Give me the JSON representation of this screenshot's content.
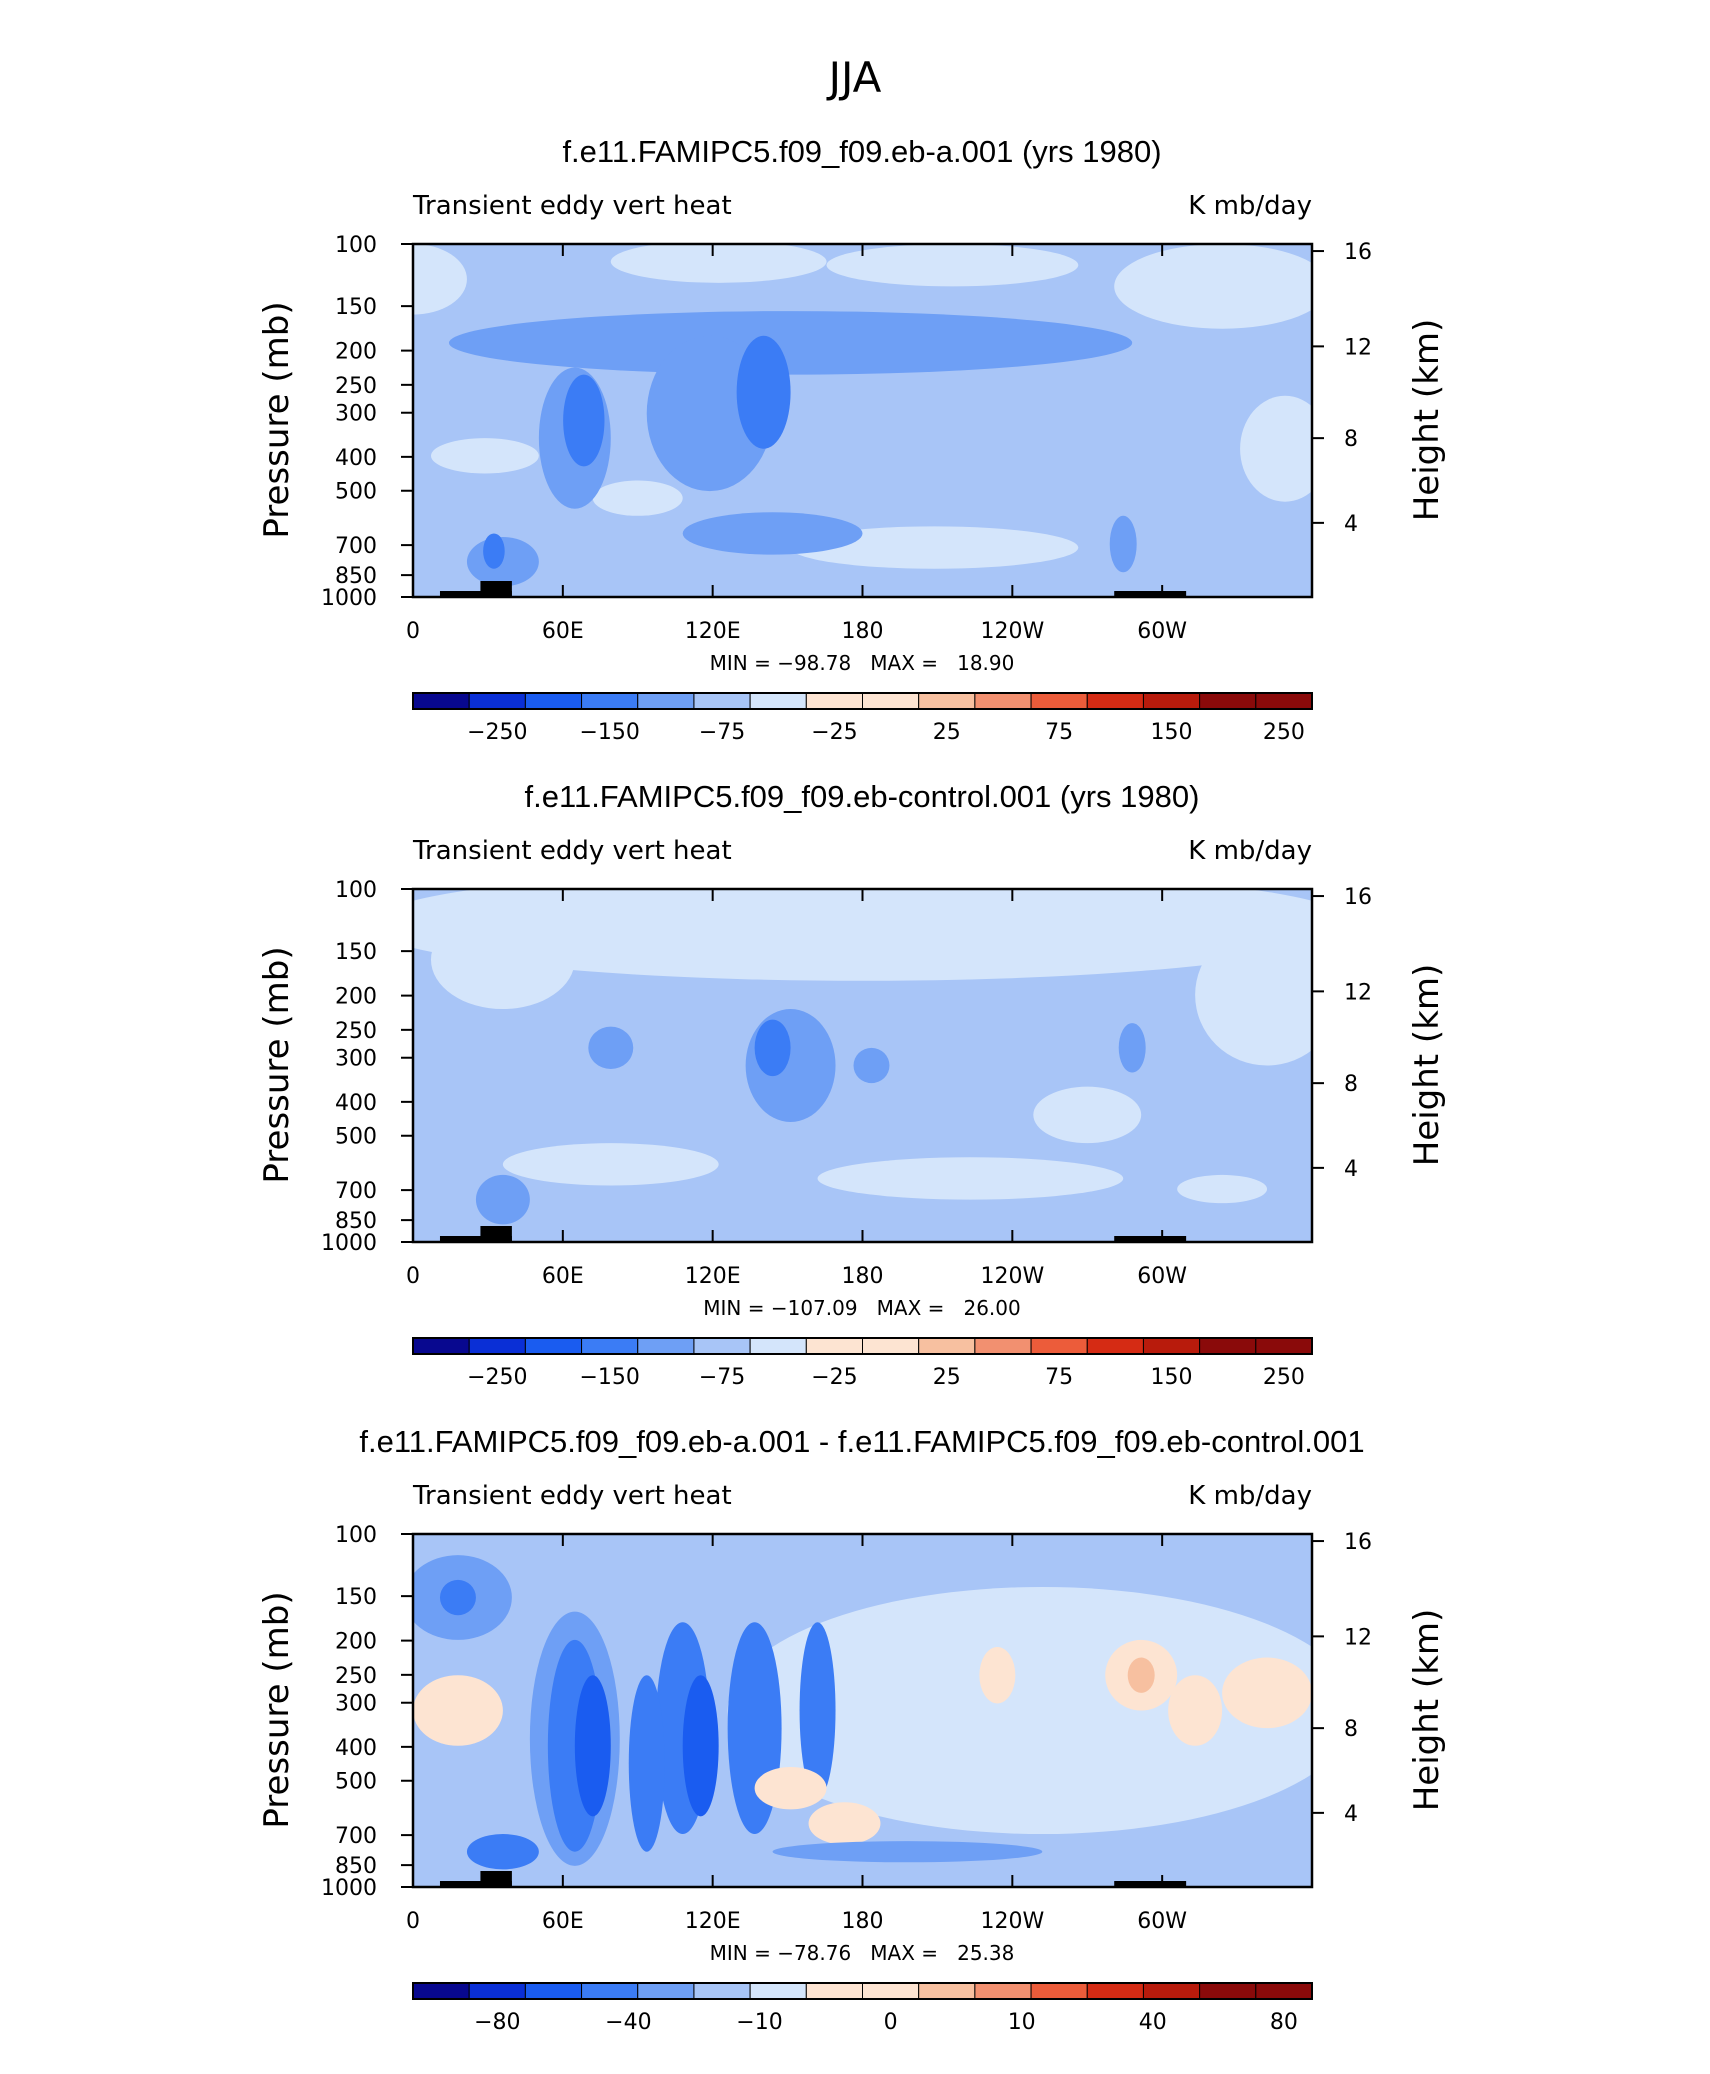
{
  "main_title": "JJA",
  "chart_data": [
    {
      "type": "heatmap",
      "title": "f.e11.FAMIPC5.f09_f09.eb-a.001 (yrs 1980)",
      "left_label": "Transient eddy vert heat",
      "right_label": "K mb/day",
      "ylabel": "Pressure (mb)",
      "y2label": "Height (km)",
      "x_ticks": [
        "0",
        "60E",
        "120E",
        "180",
        "120W",
        "60W"
      ],
      "y_ticks": [
        "100",
        "150",
        "200",
        "250",
        "300",
        "400",
        "500",
        "700",
        "850",
        "1000"
      ],
      "y2_ticks": [
        "16",
        "12",
        "8",
        "4"
      ],
      "stats": "MIN = −98.78   MAX =   18.90",
      "colorbar_labels": [
        "−250",
        "−150",
        "−75",
        "−25",
        "25",
        "75",
        "150",
        "250"
      ],
      "field": {
        "background": 5,
        "blobs": [
          {
            "cx": 0.0,
            "cy": 0.1,
            "rx": 0.06,
            "ry": 0.1,
            "level": 6
          },
          {
            "cx": 0.9,
            "cy": 0.12,
            "rx": 0.12,
            "ry": 0.12,
            "level": 6
          },
          {
            "cx": 0.34,
            "cy": 0.05,
            "rx": 0.12,
            "ry": 0.06,
            "level": 6
          },
          {
            "cx": 0.6,
            "cy": 0.06,
            "rx": 0.14,
            "ry": 0.06,
            "level": 6
          },
          {
            "cx": 0.58,
            "cy": 0.86,
            "rx": 0.16,
            "ry": 0.06,
            "level": 6
          },
          {
            "cx": 0.25,
            "cy": 0.72,
            "rx": 0.05,
            "ry": 0.05,
            "level": 6
          },
          {
            "cx": 0.97,
            "cy": 0.58,
            "rx": 0.05,
            "ry": 0.15,
            "level": 6
          },
          {
            "cx": 0.08,
            "cy": 0.6,
            "rx": 0.06,
            "ry": 0.05,
            "level": 6
          },
          {
            "cx": 0.42,
            "cy": 0.28,
            "rx": 0.38,
            "ry": 0.09,
            "level": 4
          },
          {
            "cx": 0.18,
            "cy": 0.55,
            "rx": 0.04,
            "ry": 0.2,
            "level": 4
          },
          {
            "cx": 0.19,
            "cy": 0.5,
            "rx": 0.023,
            "ry": 0.13,
            "level": 3
          },
          {
            "cx": 0.33,
            "cy": 0.48,
            "rx": 0.07,
            "ry": 0.22,
            "level": 4
          },
          {
            "cx": 0.39,
            "cy": 0.42,
            "rx": 0.03,
            "ry": 0.16,
            "level": 3
          },
          {
            "cx": 0.4,
            "cy": 0.82,
            "rx": 0.1,
            "ry": 0.06,
            "level": 4
          },
          {
            "cx": 0.1,
            "cy": 0.9,
            "rx": 0.04,
            "ry": 0.07,
            "level": 4
          },
          {
            "cx": 0.09,
            "cy": 0.87,
            "rx": 0.012,
            "ry": 0.05,
            "level": 3
          },
          {
            "cx": 0.79,
            "cy": 0.85,
            "rx": 0.015,
            "ry": 0.08,
            "level": 4
          }
        ]
      }
    },
    {
      "type": "heatmap",
      "title": "f.e11.FAMIPC5.f09_f09.eb-control.001 (yrs 1980)",
      "left_label": "Transient eddy vert heat",
      "right_label": "K mb/day",
      "ylabel": "Pressure (mb)",
      "y2label": "Height (km)",
      "x_ticks": [
        "0",
        "60E",
        "120E",
        "180",
        "120W",
        "60W"
      ],
      "y_ticks": [
        "100",
        "150",
        "200",
        "250",
        "300",
        "400",
        "500",
        "700",
        "850",
        "1000"
      ],
      "y2_ticks": [
        "16",
        "12",
        "8",
        "4"
      ],
      "stats": "MIN = −107.09   MAX =   26.00",
      "colorbar_labels": [
        "−250",
        "−150",
        "−75",
        "−25",
        "25",
        "75",
        "150",
        "250"
      ],
      "field": {
        "background": 5,
        "blobs": [
          {
            "cx": 0.5,
            "cy": 0.1,
            "rx": 0.55,
            "ry": 0.16,
            "level": 6
          },
          {
            "cx": 0.1,
            "cy": 0.2,
            "rx": 0.08,
            "ry": 0.14,
            "level": 6
          },
          {
            "cx": 0.95,
            "cy": 0.3,
            "rx": 0.08,
            "ry": 0.2,
            "level": 6
          },
          {
            "cx": 0.22,
            "cy": 0.78,
            "rx": 0.12,
            "ry": 0.06,
            "level": 6
          },
          {
            "cx": 0.62,
            "cy": 0.82,
            "rx": 0.17,
            "ry": 0.06,
            "level": 6
          },
          {
            "cx": 0.75,
            "cy": 0.64,
            "rx": 0.06,
            "ry": 0.08,
            "level": 6
          },
          {
            "cx": 0.9,
            "cy": 0.85,
            "rx": 0.05,
            "ry": 0.04,
            "level": 6
          },
          {
            "cx": 0.42,
            "cy": 0.5,
            "rx": 0.05,
            "ry": 0.16,
            "level": 4
          },
          {
            "cx": 0.4,
            "cy": 0.45,
            "rx": 0.02,
            "ry": 0.08,
            "level": 3
          },
          {
            "cx": 0.22,
            "cy": 0.45,
            "rx": 0.025,
            "ry": 0.06,
            "level": 4
          },
          {
            "cx": 0.1,
            "cy": 0.88,
            "rx": 0.03,
            "ry": 0.07,
            "level": 4
          },
          {
            "cx": 0.8,
            "cy": 0.45,
            "rx": 0.015,
            "ry": 0.07,
            "level": 4
          },
          {
            "cx": 0.51,
            "cy": 0.5,
            "rx": 0.02,
            "ry": 0.05,
            "level": 4
          }
        ]
      }
    },
    {
      "type": "heatmap",
      "title": "f.e11.FAMIPC5.f09_f09.eb-a.001 - f.e11.FAMIPC5.f09_f09.eb-control.001",
      "left_label": "Transient eddy vert heat",
      "right_label": "K mb/day",
      "ylabel": "Pressure (mb)",
      "y2label": "Height (km)",
      "x_ticks": [
        "0",
        "60E",
        "120E",
        "180",
        "120W",
        "60W"
      ],
      "y_ticks": [
        "100",
        "150",
        "200",
        "250",
        "300",
        "400",
        "500",
        "700",
        "850",
        "1000"
      ],
      "y2_ticks": [
        "16",
        "12",
        "8",
        "4"
      ],
      "stats": "MIN = −78.76   MAX =   25.38",
      "colorbar_labels": [
        "−80",
        "−40",
        "−10",
        "0",
        "10",
        "40",
        "80"
      ],
      "field": {
        "background": 5,
        "blobs": [
          {
            "cx": 0.7,
            "cy": 0.5,
            "rx": 0.35,
            "ry": 0.35,
            "level": 6
          },
          {
            "cx": 0.05,
            "cy": 0.18,
            "rx": 0.06,
            "ry": 0.12,
            "level": 4
          },
          {
            "cx": 0.05,
            "cy": 0.18,
            "rx": 0.02,
            "ry": 0.05,
            "level": 3
          },
          {
            "cx": 0.05,
            "cy": 0.5,
            "rx": 0.05,
            "ry": 0.1,
            "level": 7
          },
          {
            "cx": 0.18,
            "cy": 0.58,
            "rx": 0.05,
            "ry": 0.36,
            "level": 4
          },
          {
            "cx": 0.18,
            "cy": 0.6,
            "rx": 0.03,
            "ry": 0.3,
            "level": 3
          },
          {
            "cx": 0.2,
            "cy": 0.6,
            "rx": 0.02,
            "ry": 0.2,
            "level": 2
          },
          {
            "cx": 0.3,
            "cy": 0.55,
            "rx": 0.03,
            "ry": 0.3,
            "level": 3
          },
          {
            "cx": 0.32,
            "cy": 0.6,
            "rx": 0.02,
            "ry": 0.2,
            "level": 2
          },
          {
            "cx": 0.38,
            "cy": 0.55,
            "rx": 0.03,
            "ry": 0.3,
            "level": 3
          },
          {
            "cx": 0.26,
            "cy": 0.65,
            "rx": 0.02,
            "ry": 0.25,
            "level": 3
          },
          {
            "cx": 0.45,
            "cy": 0.5,
            "rx": 0.02,
            "ry": 0.25,
            "level": 3
          },
          {
            "cx": 0.42,
            "cy": 0.72,
            "rx": 0.04,
            "ry": 0.06,
            "level": 7
          },
          {
            "cx": 0.48,
            "cy": 0.82,
            "rx": 0.04,
            "ry": 0.06,
            "level": 7
          },
          {
            "cx": 0.8,
            "cy": 0.4,
            "rx": 0.015,
            "ry": 0.08,
            "level": 3
          },
          {
            "cx": 0.81,
            "cy": 0.4,
            "rx": 0.04,
            "ry": 0.1,
            "level": 7
          },
          {
            "cx": 0.81,
            "cy": 0.4,
            "rx": 0.015,
            "ry": 0.05,
            "level": 8
          },
          {
            "cx": 0.87,
            "cy": 0.5,
            "rx": 0.03,
            "ry": 0.1,
            "level": 7
          },
          {
            "cx": 0.95,
            "cy": 0.45,
            "rx": 0.05,
            "ry": 0.1,
            "level": 7
          },
          {
            "cx": 0.65,
            "cy": 0.4,
            "rx": 0.02,
            "ry": 0.08,
            "level": 7
          },
          {
            "cx": 0.55,
            "cy": 0.9,
            "rx": 0.15,
            "ry": 0.03,
            "level": 4
          },
          {
            "cx": 0.1,
            "cy": 0.9,
            "rx": 0.04,
            "ry": 0.05,
            "level": 3
          }
        ]
      }
    }
  ]
}
